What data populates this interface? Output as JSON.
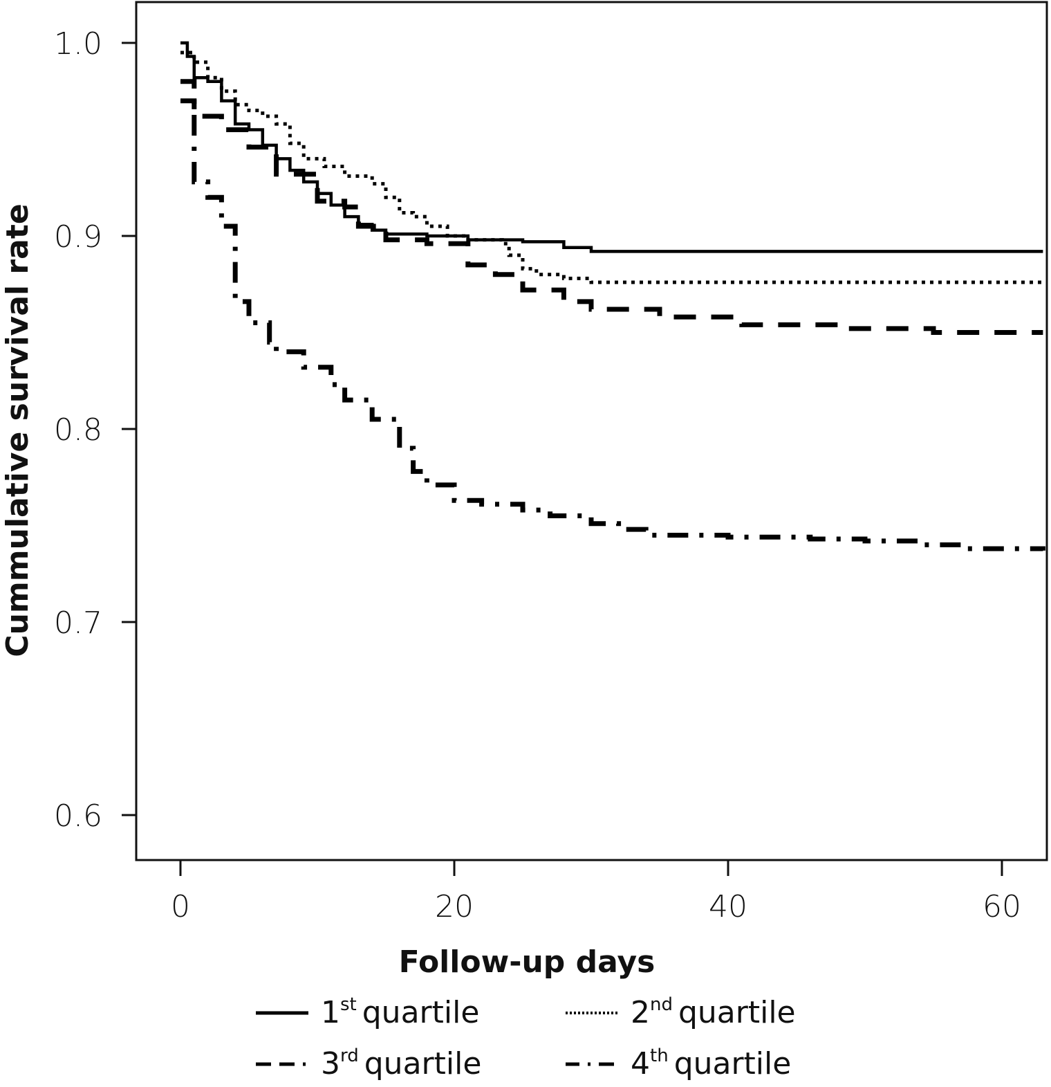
{
  "chart_data": {
    "type": "line",
    "subtype": "kaplan-meier-step",
    "title": "",
    "xlabel": "Follow-up days",
    "ylabel": "Cummulative survival rate",
    "xlim": [
      -3.3,
      63.2
    ],
    "ylim": [
      0.58,
      1.02
    ],
    "xticks": [
      0,
      20,
      40,
      60
    ],
    "xtick_labels": [
      "0",
      "20",
      "40",
      "60"
    ],
    "yticks": [
      0.6,
      0.7,
      0.8,
      0.9,
      1.0
    ],
    "ytick_labels": [
      "0.6",
      "0.7",
      "0.8",
      "0.9",
      "1.0"
    ],
    "grid": false,
    "legend_position": "bottom",
    "series": [
      {
        "name": "1st quartile",
        "ordinal": "1",
        "suffix": "st",
        "label_rest": "quartile",
        "style": "solid",
        "x": [
          0,
          0.5,
          1,
          2,
          3,
          4,
          5,
          6,
          7,
          8,
          9,
          10,
          11,
          12,
          13,
          14,
          15,
          18,
          21,
          25,
          28,
          30,
          63
        ],
        "y": [
          1.0,
          0.993,
          0.982,
          0.98,
          0.97,
          0.958,
          0.955,
          0.947,
          0.94,
          0.934,
          0.928,
          0.922,
          0.916,
          0.91,
          0.906,
          0.903,
          0.901,
          0.9,
          0.898,
          0.897,
          0.894,
          0.892,
          0.892
        ]
      },
      {
        "name": "2nd quartile",
        "ordinal": "2",
        "suffix": "nd",
        "label_rest": "quartile",
        "style": "dotted",
        "x": [
          0,
          1,
          2,
          3,
          4,
          5,
          6,
          7,
          8,
          9,
          10.5,
          12,
          14,
          15,
          16,
          17,
          18,
          19.5,
          21,
          23.5,
          24,
          25,
          26,
          28,
          30,
          63
        ],
        "y": [
          0.995,
          0.99,
          0.982,
          0.975,
          0.968,
          0.965,
          0.962,
          0.958,
          0.948,
          0.94,
          0.936,
          0.931,
          0.927,
          0.92,
          0.912,
          0.91,
          0.905,
          0.9,
          0.898,
          0.896,
          0.89,
          0.883,
          0.88,
          0.878,
          0.876,
          0.876
        ]
      },
      {
        "name": "3rd quartile",
        "ordinal": "3",
        "suffix": "rd",
        "label_rest": "quartile",
        "style": "dashed",
        "x": [
          0,
          1,
          3,
          5,
          7,
          10,
          12,
          13,
          15,
          18,
          21,
          23,
          25,
          28,
          30,
          35,
          41,
          48,
          55,
          63
        ],
        "y": [
          0.97,
          0.962,
          0.955,
          0.946,
          0.932,
          0.918,
          0.915,
          0.905,
          0.898,
          0.896,
          0.885,
          0.88,
          0.872,
          0.866,
          0.862,
          0.858,
          0.854,
          0.852,
          0.85,
          0.85
        ]
      },
      {
        "name": "4th quartile",
        "ordinal": "4",
        "suffix": "th",
        "label_rest": "quartile",
        "style": "dashdot",
        "x": [
          0,
          1,
          2,
          3,
          4,
          5,
          6.5,
          7,
          9,
          11,
          12,
          14,
          16,
          17,
          18,
          20,
          22,
          25,
          27,
          30,
          32,
          34,
          40,
          46,
          50,
          54,
          57,
          63
        ],
        "y": [
          0.98,
          0.928,
          0.92,
          0.905,
          0.866,
          0.855,
          0.845,
          0.84,
          0.832,
          0.823,
          0.815,
          0.805,
          0.79,
          0.778,
          0.771,
          0.763,
          0.761,
          0.758,
          0.755,
          0.751,
          0.748,
          0.745,
          0.744,
          0.743,
          0.742,
          0.74,
          0.738,
          0.737
        ]
      }
    ]
  }
}
